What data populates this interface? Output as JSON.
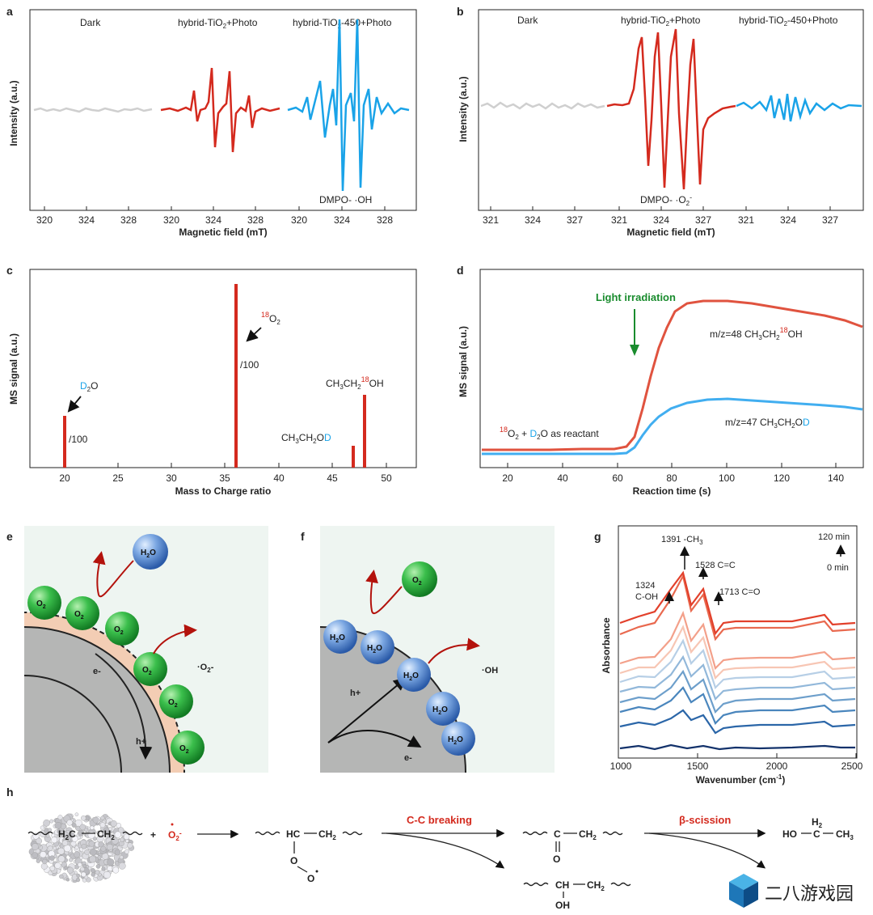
{
  "panel_a": {
    "letter": "a",
    "labels": [
      "Dark",
      "hybrid-TiO",
      "2",
      "+Photo",
      "hybrid-TiO",
      "2",
      "-450+Photo"
    ],
    "ylabel": "Intensity (a.u.)",
    "xlabel": "Magnetic field (mT)",
    "ticks": [
      "320",
      "324",
      "328",
      "320",
      "324",
      "328",
      "320",
      "324",
      "328"
    ],
    "annotation": "DMPO- ·OH"
  },
  "panel_b": {
    "letter": "b",
    "labels": [
      "Dark",
      "hybrid-TiO",
      "2",
      "+Photo",
      "hybrid-TiO",
      "2",
      "-450+Photo"
    ],
    "ylabel": "Intensity (a.u.)",
    "xlabel": "Magnetic field (mT)",
    "ticks": [
      "321",
      "324",
      "327",
      "321",
      "324",
      "327",
      "321",
      "324",
      "327"
    ],
    "annotation": "DMPO- ·O",
    "annotation_sub": "2",
    "annotation_sup": "-"
  },
  "panel_c": {
    "letter": "c",
    "ylabel": "MS signal (a.u.)",
    "xlabel": "Mass to Charge ratio",
    "ticks": [
      "20",
      "25",
      "30",
      "35",
      "40",
      "45",
      "50"
    ],
    "d2o": {
      "d": "D",
      "sub": "2",
      "o": "O",
      "div": "/100"
    },
    "o18": {
      "sup": "18",
      "o": "O",
      "sub": "2",
      "div": "/100"
    },
    "eth18": {
      "a": "CH",
      "b": "3",
      "c": "CH",
      "d": "2",
      "e": "18",
      "f": "OH"
    },
    "ethd": {
      "a": "CH",
      "b": "3",
      "c": "CH",
      "d": "2",
      "e": "O",
      "f": "D"
    }
  },
  "panel_d": {
    "letter": "d",
    "ylabel": "MS signal (a.u.)",
    "xlabel": "Reaction time (s)",
    "ticks": [
      "20",
      "40",
      "60",
      "80",
      "100",
      "120",
      "140"
    ],
    "light": "Light irradiation",
    "line48": {
      "a": "m/z=48 CH",
      "b": "3",
      "c": "CH",
      "d": "2",
      "e": "18",
      "f": "OH"
    },
    "line47": {
      "a": "m/z=47 CH",
      "b": "3",
      "c": "CH",
      "d": "2",
      "e": "O",
      "f": "D"
    },
    "reactant": {
      "a": "18",
      "b": "O",
      "c": "2",
      "d": " + ",
      "e": "D",
      "f": "2",
      "g": "O as reactant"
    }
  },
  "panel_e": {
    "letter": "e",
    "h2o": {
      "a": "H",
      "b": "2",
      "c": "O"
    },
    "o2": {
      "a": "O",
      "b": "2"
    },
    "radical": {
      "a": "·O",
      "b": "2",
      "c": "-"
    },
    "electron": "e-",
    "hole": "h+"
  },
  "panel_f": {
    "letter": "f",
    "h2o": {
      "a": "H",
      "b": "2",
      "c": "O"
    },
    "o2": {
      "a": "O",
      "b": "2"
    },
    "radical": "·OH",
    "electron": "e-",
    "hole": "h+"
  },
  "panel_g": {
    "letter": "g",
    "ylabel": "Absorbance",
    "xlabel": "Wavenumber (cm",
    "xlabel_sup": "-1",
    "xlabel_end": ")",
    "ticks": [
      "1000",
      "1500",
      "2000",
      "2500"
    ],
    "peak1391": {
      "a": "1391 -CH",
      "b": "3"
    },
    "peak1528": "1528 C=C",
    "peak1324a": "1324",
    "peak1324b": "C-OH",
    "peak1713": "1713 C=O",
    "t_end": "120 min",
    "t_start": "0 min"
  },
  "panel_h": {
    "letter": "h",
    "step1": "C-C breaking",
    "step2": "β-scission",
    "plus": "+",
    "radical": {
      "a": "O",
      "b": "2",
      "c": "-"
    },
    "poly": {
      "a": "H",
      "b": "2",
      "c": "C",
      "d": "CH",
      "e": "2"
    },
    "peroxy": {
      "a": "HC",
      "b": "CH",
      "c": "2",
      "o1": "O",
      "o2": "O"
    },
    "ketone": {
      "a": "C",
      "b": "CH",
      "c": "2",
      "o": "O"
    },
    "alcohol": {
      "a": "CH",
      "b": "CH",
      "c": "2",
      "oh": "OH"
    },
    "ethanol": {
      "a": "HO",
      "b": "C",
      "c": "CH",
      "d": "3",
      "h": "H",
      "h2": "2"
    }
  },
  "watermark": "二八游戏园",
  "colors": {
    "red": "#d42a1e",
    "blue": "#1aa3e8",
    "grey": "#cfcfcf",
    "d_red": "#e0533f",
    "d_blue": "#41aef0"
  }
}
